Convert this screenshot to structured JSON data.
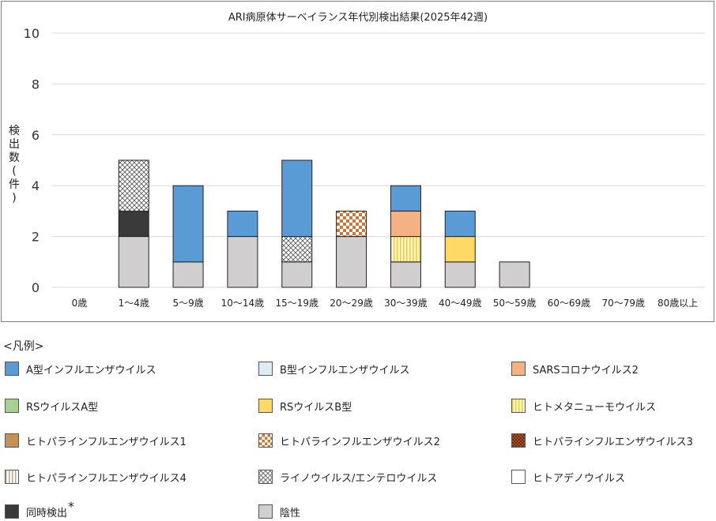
{
  "chart_data": {
    "type": "bar",
    "stacked": true,
    "title": "ARI病原体サーベイランス年代別検出結果(2025年42週)",
    "ylabel_chars": [
      "検",
      "出",
      "数",
      "(",
      "件",
      ")"
    ],
    "xlabel": "",
    "ylim": [
      0,
      10
    ],
    "yticks": [
      "0",
      "2",
      "4",
      "6",
      "8",
      "10"
    ],
    "grid": true,
    "categories": [
      "0歳",
      "1～4歳",
      "5～9歳",
      "10～14歳",
      "15～19歳",
      "20～29歳",
      "30～39歳",
      "40～49歳",
      "50～59歳",
      "60～69歳",
      "70～79歳",
      "80歳以上"
    ],
    "series": [
      {
        "name": "陰性",
        "fill": "gray",
        "values": [
          0,
          2,
          1,
          2,
          1,
          2,
          1,
          1,
          1,
          0,
          0,
          0
        ]
      },
      {
        "name": "同時検出",
        "fill": "dark",
        "values": [
          0,
          1,
          0,
          0,
          0,
          0,
          0,
          0,
          0,
          0,
          0,
          0
        ]
      },
      {
        "name": "ヒトメタニューモウイルス",
        "fill": "vstripeYellow",
        "values": [
          0,
          0,
          0,
          0,
          0,
          0,
          1,
          0,
          0,
          0,
          0,
          0
        ]
      },
      {
        "name": "RSウイルスB型",
        "fill": "yellow",
        "values": [
          0,
          0,
          0,
          0,
          0,
          0,
          0,
          1,
          0,
          0,
          0,
          0
        ]
      },
      {
        "name": "ライノウイルス/エンテロウイルス",
        "fill": "crosshatch",
        "values": [
          0,
          2,
          0,
          0,
          1,
          0,
          0,
          0,
          0,
          0,
          0,
          0
        ]
      },
      {
        "name": "ヒトパラインフルエンザウイルス2",
        "fill": "checkOrange",
        "values": [
          0,
          0,
          0,
          0,
          0,
          1,
          0,
          0,
          0,
          0,
          0,
          0
        ]
      },
      {
        "name": "SARSコロナウイルス2",
        "fill": "salmon",
        "values": [
          0,
          0,
          0,
          0,
          0,
          0,
          1,
          0,
          0,
          0,
          0,
          0
        ]
      },
      {
        "name": "A型インフルエンザウイルス",
        "fill": "blue",
        "values": [
          0,
          0,
          3,
          1,
          3,
          0,
          1,
          1,
          0,
          0,
          0,
          0
        ]
      }
    ],
    "legend_heading": "<凡例>",
    "legend_items": [
      {
        "name": "A型インフルエンザウイルス",
        "fill": "blue"
      },
      {
        "name": "B型インフルエンザウイルス",
        "fill": "lightblue"
      },
      {
        "name": "SARSコロナウイルス2",
        "fill": "salmon"
      },
      {
        "name": "RSウイルスA型",
        "fill": "green"
      },
      {
        "name": "RSウイルスB型",
        "fill": "yellow"
      },
      {
        "name": "ヒトメタニューモウイルス",
        "fill": "vstripeYellow"
      },
      {
        "name": "ヒトパラインフルエンザウイルス1",
        "fill": "tan"
      },
      {
        "name": "ヒトパラインフルエンザウイルス2",
        "fill": "checkOrange"
      },
      {
        "name": "ヒトパラインフルエンザウイルス3",
        "fill": "brownCheck"
      },
      {
        "name": "ヒトパラインフルエンザウイルス4",
        "fill": "vstripeBeige"
      },
      {
        "name": "ライノウイルス/エンテロウイルス",
        "fill": "crosshatch"
      },
      {
        "name": "ヒトアデノウイルス",
        "fill": "white"
      },
      {
        "name": "同時検出",
        "fill": "dark",
        "note": "*"
      },
      {
        "name": "陰性",
        "fill": "gray"
      }
    ]
  },
  "colors": {
    "blue": "#5b9bd5",
    "lightblue": "#deebf7",
    "salmon": "#f4b183",
    "green": "#a9d18e",
    "yellow": "#ffd966",
    "tan": "#c5905a",
    "white": "#ffffff",
    "dark": "#3a3a3a",
    "gray": "#d0cece",
    "orange": "#c77a3a",
    "brown": "#7a3810"
  }
}
